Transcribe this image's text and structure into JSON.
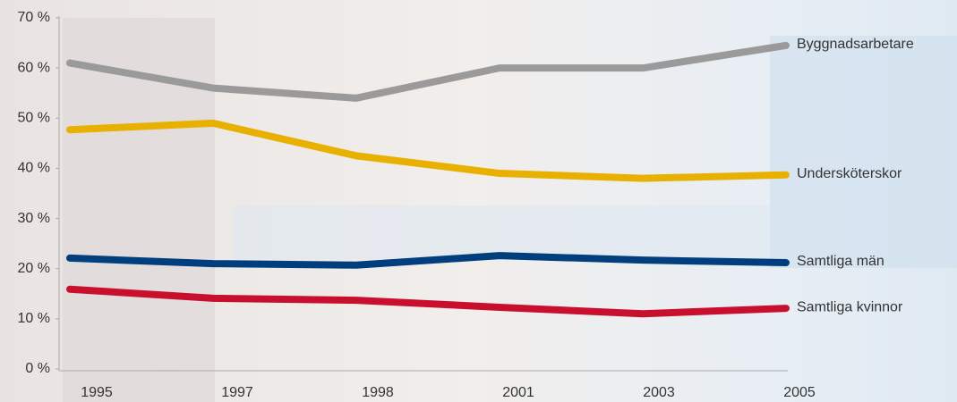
{
  "chart_data": {
    "type": "line",
    "categories": [
      "1995",
      "1997",
      "1998",
      "2001",
      "2003",
      "2005"
    ],
    "series": [
      {
        "name": "Byggnadsarbetare",
        "color": "#9a9a9a",
        "values": [
          61,
          56,
          54,
          60,
          60,
          64.5
        ]
      },
      {
        "name": "Undersköterskor",
        "color": "#e8b000",
        "values": [
          47.7,
          49,
          42.5,
          39,
          38,
          38.7
        ]
      },
      {
        "name": "Samtliga män",
        "color": "#003e7e",
        "values": [
          22.1,
          21,
          20.7,
          22.6,
          21.7,
          21.2
        ]
      },
      {
        "name": "Samtliga kvinnor",
        "color": "#c8102e",
        "values": [
          15.9,
          14.1,
          13.7,
          12.3,
          11,
          12.1
        ]
      }
    ],
    "ylim": [
      0,
      70
    ],
    "yticks": [
      {
        "value": 0,
        "label": "0 %"
      },
      {
        "value": 10,
        "label": "10 %"
      },
      {
        "value": 20,
        "label": "20 %"
      },
      {
        "value": 30,
        "label": "30 %"
      },
      {
        "value": 40,
        "label": "40 %"
      },
      {
        "value": 50,
        "label": "50 %"
      },
      {
        "value": 60,
        "label": "60 %"
      },
      {
        "value": 70,
        "label": "70 %"
      }
    ]
  }
}
